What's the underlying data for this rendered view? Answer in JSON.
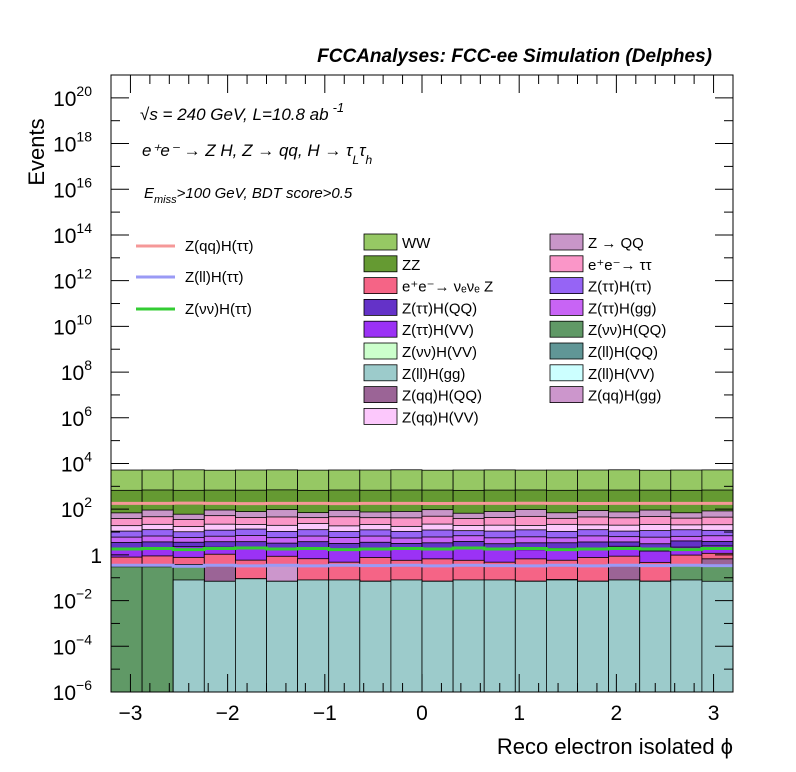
{
  "chart_data": {
    "type": "bar",
    "title": "FCCAnalyses: FCC-ee Simulation (Delphes)",
    "xlabel": "Reco electron isolated ϕ",
    "ylabel": "Events",
    "y_scale": "log",
    "xlim": [
      -3.2,
      3.2
    ],
    "ylim": [
      1e-06,
      1e+21
    ],
    "x_ticks": [
      {
        "v": -3,
        "label": "−3"
      },
      {
        "v": -2,
        "label": "−2"
      },
      {
        "v": -1,
        "label": "−1"
      },
      {
        "v": 0,
        "label": "0"
      },
      {
        "v": 1,
        "label": "1"
      },
      {
        "v": 2,
        "label": "2"
      },
      {
        "v": 3,
        "label": "3"
      }
    ],
    "y_ticks": [
      {
        "exp": 20,
        "label": "10",
        "sup": "20"
      },
      {
        "exp": 18,
        "label": "10",
        "sup": "18"
      },
      {
        "exp": 16,
        "label": "10",
        "sup": "16"
      },
      {
        "exp": 14,
        "label": "10",
        "sup": "14"
      },
      {
        "exp": 12,
        "label": "10",
        "sup": "12"
      },
      {
        "exp": 10,
        "label": "10",
        "sup": "10"
      },
      {
        "exp": 8,
        "label": "10",
        "sup": "8"
      },
      {
        "exp": 6,
        "label": "10",
        "sup": "6"
      },
      {
        "exp": 4,
        "label": "10",
        "sup": "4"
      },
      {
        "exp": 2,
        "label": "10",
        "sup": "2"
      },
      {
        "exp": 0,
        "label": "1",
        "sup": ""
      },
      {
        "exp": -2,
        "label": "10",
        "sup": "−2"
      },
      {
        "exp": -4,
        "label": "10",
        "sup": "−4"
      },
      {
        "exp": -6,
        "label": "10",
        "sup": "−6"
      }
    ],
    "bin_edges": [
      -3.2,
      -2.88,
      -2.56,
      -2.24,
      -1.92,
      -1.6,
      -1.28,
      -0.96,
      -0.64,
      -0.32,
      0.0,
      0.32,
      0.64,
      0.96,
      1.28,
      1.6,
      1.92,
      2.24,
      2.56,
      2.88,
      3.2
    ],
    "annotations": {
      "sqrt_s": "√s = 240 GeV, L=10.8 ab",
      "lumi_exp": "-1",
      "process": "e⁺e⁻ → Z H, Z → qq, H → τ",
      "process_sub1": "L",
      "process_tau2": "τ",
      "process_sub2": "h",
      "selection": "E",
      "selection_sub": "miss",
      "selection_rest": ">100 GeV, BDT score>0.5"
    },
    "signals": [
      {
        "name": "Z(qq)H(ττ)",
        "color": "#f59898",
        "values": [
          180,
          180,
          185,
          180,
          175,
          180,
          180,
          175,
          180,
          180,
          178,
          180,
          180,
          182,
          180,
          178,
          180,
          180,
          180,
          180
        ]
      },
      {
        "name": "Z(ll)H(ττ)",
        "color": "#9a9af5",
        "values": [
          0.35,
          0.35,
          0.32,
          0.35,
          0.33,
          0.35,
          0.33,
          0.35,
          0.34,
          0.35,
          0.33,
          0.35,
          0.34,
          0.33,
          0.35,
          0.33,
          0.35,
          0.34,
          0.35,
          0.34
        ]
      },
      {
        "name": "Z(νν)H(ττ)",
        "color": "#33cc33",
        "values": [
          1.8,
          1.9,
          1.7,
          1.9,
          2.0,
          1.8,
          1.9,
          1.7,
          1.8,
          1.9,
          1.8,
          2.0,
          1.8,
          1.9,
          1.7,
          1.8,
          1.9,
          1.8,
          1.7,
          1.9
        ]
      }
    ],
    "backgrounds": [
      {
        "name": "Z(ll)H(gg)",
        "color": "#9ccbcb",
        "values": [
          1e-06,
          1e-06,
          0.08,
          0.07,
          0.09,
          0.07,
          0.08,
          0.08,
          0.07,
          0.08,
          0.07,
          0.08,
          0.08,
          0.07,
          0.08,
          0.07,
          0.08,
          0.07,
          0.08,
          0.07
        ]
      },
      {
        "name": "Z(νν)H(QQ)",
        "color": "#609966",
        "values": [
          0.3,
          0.3,
          0.3,
          1e-06,
          1e-06,
          1e-06,
          1e-06,
          0.0002,
          1e-06,
          1e-06,
          1e-06,
          1e-06,
          1e-06,
          1e-06,
          1e-06,
          1e-06,
          1e-06,
          1e-06,
          0.3,
          0.3
        ]
      },
      {
        "name": "Z(qq)H(QQ)",
        "color": "#9b6496",
        "values": [
          1e-06,
          1e-06,
          1e-06,
          0.3,
          1e-06,
          1e-06,
          1e-06,
          1e-06,
          1e-06,
          1e-06,
          1e-06,
          1e-06,
          1e-06,
          1e-06,
          0.003,
          1e-06,
          0.3,
          1e-06,
          1e-06,
          0.3
        ]
      },
      {
        "name": "Z(qq)H(gg)",
        "color": "#cc96cc",
        "values": [
          1e-06,
          1e-06,
          1e-06,
          1e-06,
          1e-06,
          0.3,
          1e-06,
          1e-06,
          1e-06,
          1e-06,
          1e-06,
          1e-06,
          1e-06,
          1e-06,
          1e-06,
          1e-06,
          1e-06,
          1e-06,
          1e-06,
          1e-06
        ]
      },
      {
        "name": "e⁺e⁻→ νₑνₑ Z",
        "color": "#f56486",
        "values": [
          0.5,
          0.6,
          0.4,
          0.7,
          0.5,
          0.5,
          0.6,
          0.4,
          0.7,
          0.5,
          0.6,
          0.5,
          0.4,
          0.6,
          0.5,
          0.7,
          0.5,
          0.4,
          0.6,
          0.5
        ]
      },
      {
        "name": "Z(ττ)H(VV)",
        "color": "#9b32f5",
        "values": [
          1.2,
          1.0,
          1.5,
          1.1,
          1.3,
          1.0,
          1.4,
          1.2,
          1.0,
          1.3,
          1.1,
          1.4,
          1.2,
          1.0,
          1.3,
          1.1,
          1.5,
          1.0,
          1.2,
          1.3
        ]
      },
      {
        "name": "Z(ττ)H(QQ)",
        "color": "#6432c8",
        "values": [
          1.5,
          1.8,
          1.3,
          1.6,
          1.9,
          1.4,
          1.7,
          1.5,
          1.8,
          1.3,
          1.6,
          1.9,
          1.4,
          1.7,
          1.5,
          1.8,
          1.3,
          1.6,
          1.9,
          1.4
        ]
      },
      {
        "name": "Z(ττ)H(gg)",
        "color": "#c864f5",
        "values": [
          2.5,
          3.0,
          2.2,
          2.8,
          3.2,
          2.4,
          2.9,
          2.6,
          3.1,
          2.3,
          2.7,
          3.0,
          2.5,
          2.8,
          2.2,
          3.1,
          2.6,
          2.9,
          2.4,
          3.0
        ]
      },
      {
        "name": "Z(ττ)H(ττ)",
        "color": "#9664f5",
        "values": [
          5,
          6,
          4.5,
          5.5,
          6.5,
          5,
          6,
          4.8,
          5.8,
          5.2,
          6.2,
          4.6,
          5.4,
          6.3,
          5.1,
          5.9,
          4.7,
          5.6,
          6.1,
          5.0
        ]
      },
      {
        "name": "Z(qq)H(VV)",
        "color": "#fcc8fc",
        "values": [
          8,
          9,
          7,
          10,
          8,
          9,
          11,
          8,
          9,
          7,
          10,
          8,
          9,
          7,
          11,
          8,
          9,
          10,
          8,
          9
        ]
      },
      {
        "name": "e⁺e⁻→ ττ",
        "color": "#fa96c8",
        "values": [
          20,
          25,
          18,
          30,
          22,
          26,
          19,
          28,
          21,
          24,
          27,
          20,
          23,
          29,
          18,
          25,
          22,
          26,
          20,
          24
        ]
      },
      {
        "name": "Z → QQ",
        "color": "#c896c8",
        "values": [
          30,
          45,
          25,
          40,
          35,
          50,
          28,
          42,
          33,
          38,
          46,
          27,
          36,
          48,
          30,
          41,
          34,
          44,
          29,
          39
        ]
      },
      {
        "name": "ZZ",
        "color": "#659a32",
        "values": [
          600,
          600,
          610,
          590,
          600,
          605,
          595,
          600,
          600,
          610,
          590,
          600,
          605,
          595,
          600,
          600,
          610,
          590,
          600,
          605
        ]
      },
      {
        "name": "WW",
        "color": "#96c864",
        "values": [
          4500,
          4500,
          4600,
          4400,
          4500,
          4550,
          4450,
          4500,
          4500,
          4600,
          4400,
          4500,
          4550,
          4450,
          4500,
          4500,
          4600,
          4400,
          4500,
          4550
        ]
      }
    ],
    "legend_columns": {
      "left": [
        "WW",
        "ZZ",
        "e⁺e⁻→ νₑνₑ Z",
        "Z(ττ)H(QQ)",
        "Z(ττ)H(VV)",
        "Z(νν)H(VV)",
        "Z(ll)H(gg)",
        "Z(qq)H(QQ)",
        "Z(qq)H(VV)"
      ],
      "right": [
        "Z → QQ",
        "e⁺e⁻→ ττ",
        "Z(ττ)H(ττ)",
        "Z(ττ)H(gg)",
        "Z(νν)H(QQ)",
        "Z(ll)H(QQ)",
        "Z(ll)H(VV)",
        "Z(qq)H(gg)"
      ]
    },
    "legend_only": [
      {
        "name": "Z(νν)H(VV)",
        "color": "#ccffcc"
      },
      {
        "name": "Z(ll)H(QQ)",
        "color": "#609696"
      },
      {
        "name": "Z(ll)H(VV)",
        "color": "#ccffff"
      }
    ]
  }
}
